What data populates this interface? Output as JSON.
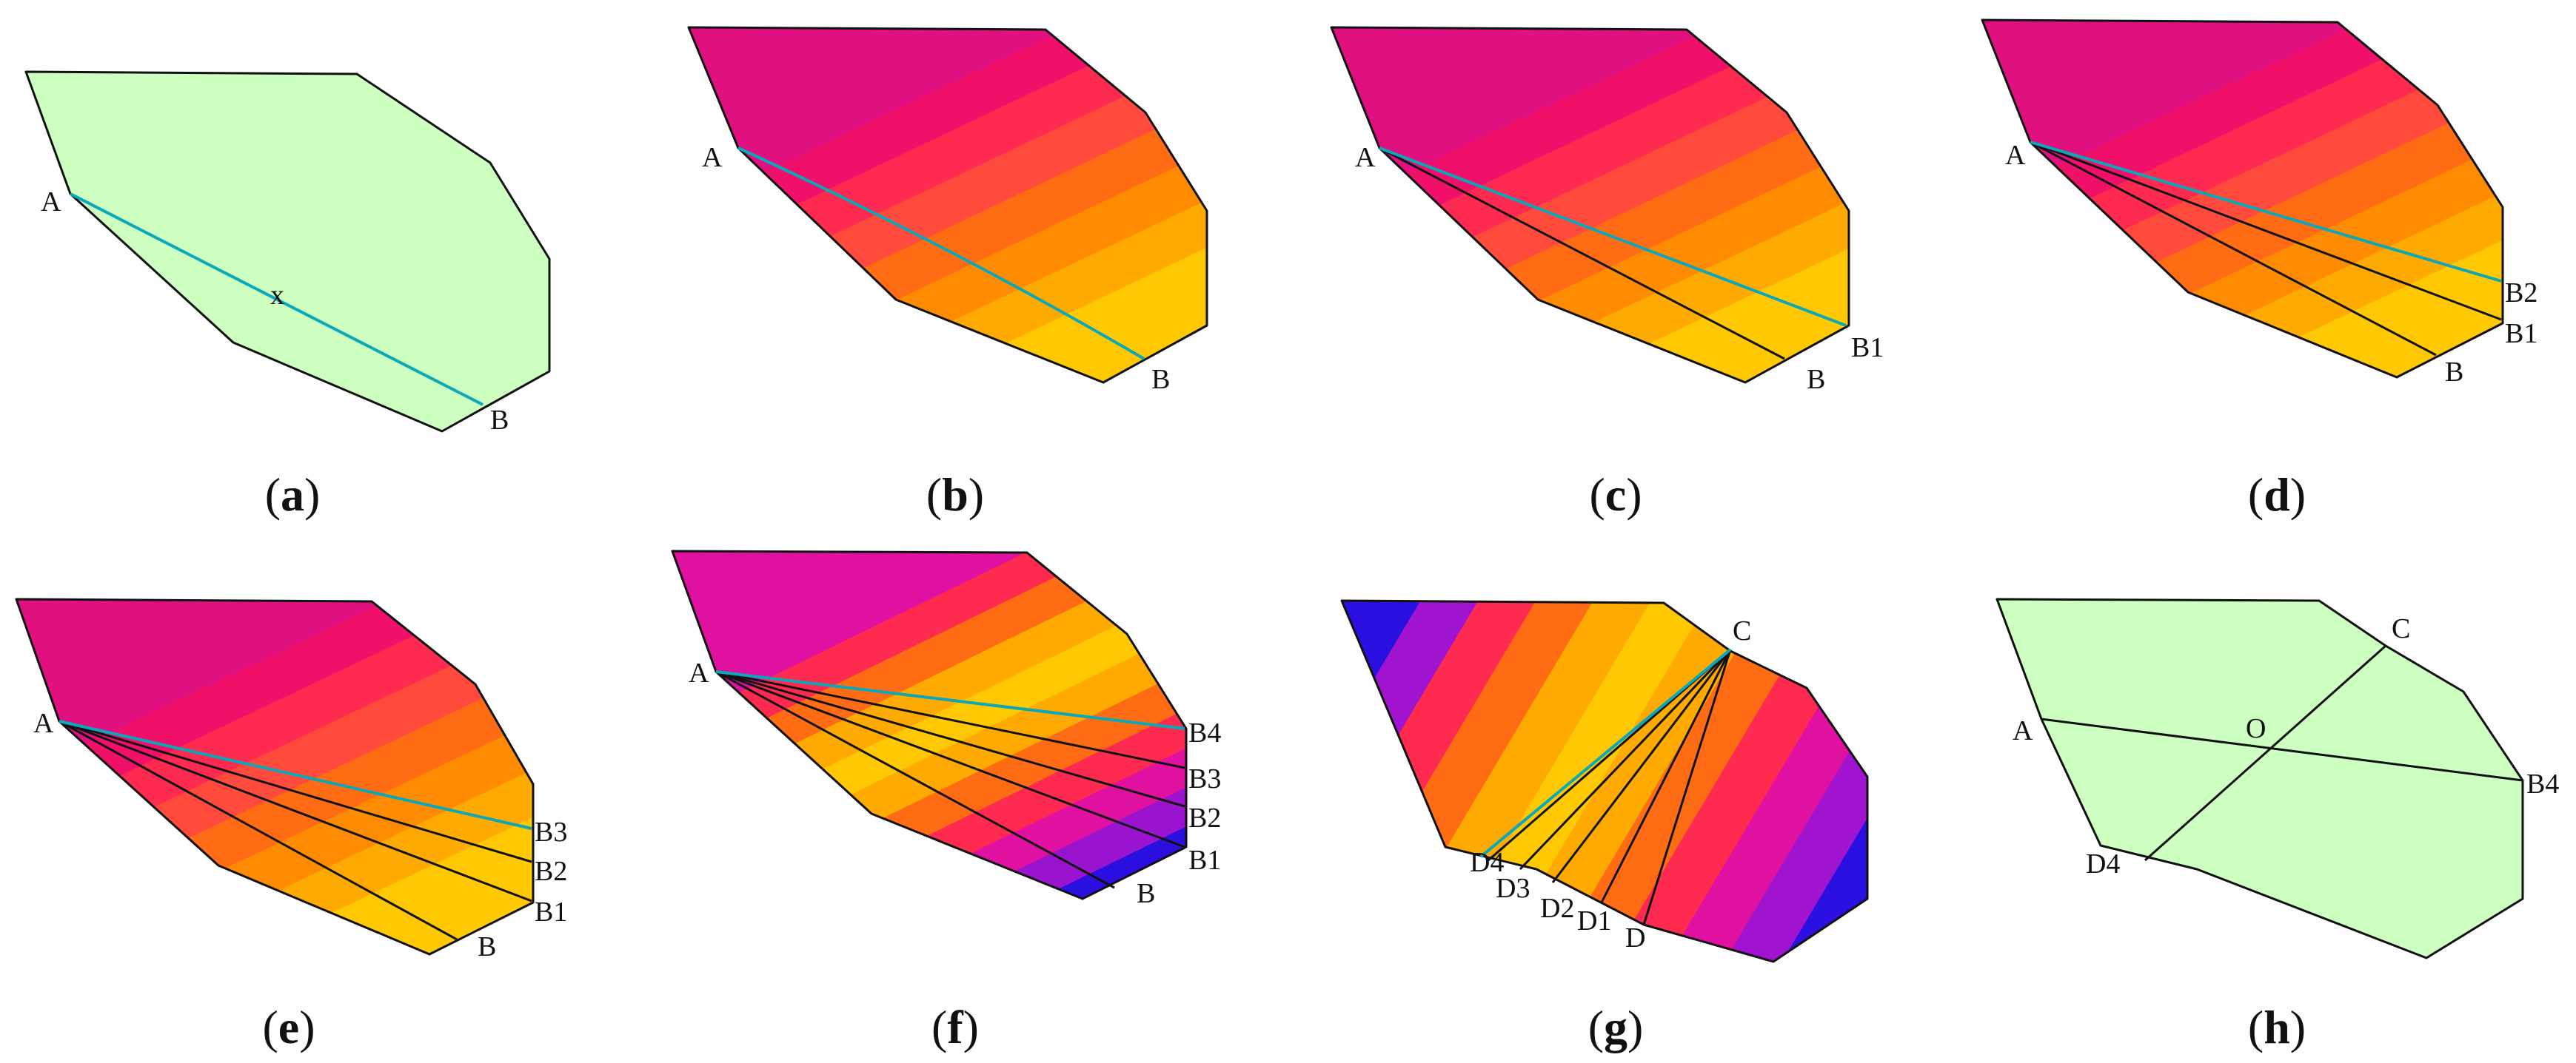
{
  "panels": [
    {
      "id": "a",
      "caption": "a",
      "fill": "flat",
      "colors": [
        "#ccffc0"
      ],
      "labels": [
        "A",
        "B"
      ],
      "center_mark": "x"
    },
    {
      "id": "b",
      "caption": "b",
      "fill": "bands",
      "colors": [
        "#ffc800",
        "#ffaa00",
        "#ff8c00",
        "#ff6c14",
        "#ff4a3c",
        "#ff2a50",
        "#f0106a",
        "#e01080"
      ],
      "labels": [
        "A",
        "B"
      ]
    },
    {
      "id": "c",
      "caption": "c",
      "fill": "bands",
      "colors": [
        "#ffc800",
        "#ffaa00",
        "#ff8c00",
        "#ff6c14",
        "#ff4a3c",
        "#ff2a50",
        "#f0106a",
        "#e01080"
      ],
      "labels": [
        "A",
        "B",
        "B1"
      ]
    },
    {
      "id": "d",
      "caption": "d",
      "fill": "bands",
      "colors": [
        "#ffc800",
        "#ffaa00",
        "#ff8c00",
        "#ff6c14",
        "#ff4a3c",
        "#ff2a50",
        "#f0106a",
        "#e01080"
      ],
      "labels": [
        "A",
        "B",
        "B1",
        "B2"
      ]
    },
    {
      "id": "e",
      "caption": "e",
      "fill": "bands",
      "colors": [
        "#ffc800",
        "#ffaa00",
        "#ff8c00",
        "#ff6c14",
        "#ff4a3c",
        "#ff2a50",
        "#f0106a",
        "#e01080"
      ],
      "labels": [
        "A",
        "B",
        "B1",
        "B2",
        "B3"
      ]
    },
    {
      "id": "f",
      "caption": "f",
      "fill": "bands",
      "colors": [
        "#2a10e0",
        "#9a14d0",
        "#e010a0",
        "#ff2a50",
        "#ff6c14",
        "#ffaa00",
        "#ffc800",
        "#ffaa00",
        "#ff6c14",
        "#ff2a50",
        "#e010a0"
      ],
      "labels": [
        "A",
        "B",
        "B1",
        "B2",
        "B3",
        "B4"
      ]
    },
    {
      "id": "g",
      "caption": "g",
      "fill": "bands",
      "colors": [
        "#2a10e0",
        "#a014d0",
        "#ff2a50",
        "#ff6c14",
        "#ffaa00",
        "#ffc800",
        "#ffaa00",
        "#ff6c14",
        "#ff2a50",
        "#e010a0",
        "#a014d0",
        "#2a10e0"
      ],
      "labels": [
        "C",
        "D",
        "D1",
        "D2",
        "D3",
        "D4"
      ]
    },
    {
      "id": "h",
      "caption": "h",
      "fill": "flat",
      "colors": [
        "#ccffc0"
      ],
      "labels": [
        "A",
        "C",
        "O",
        "B4",
        "D4"
      ]
    }
  ],
  "palette": {
    "outline": "#111111",
    "scan_line": "#111111",
    "selected_line": "#0aa8b8",
    "flat_fill": "#ccffc0"
  }
}
